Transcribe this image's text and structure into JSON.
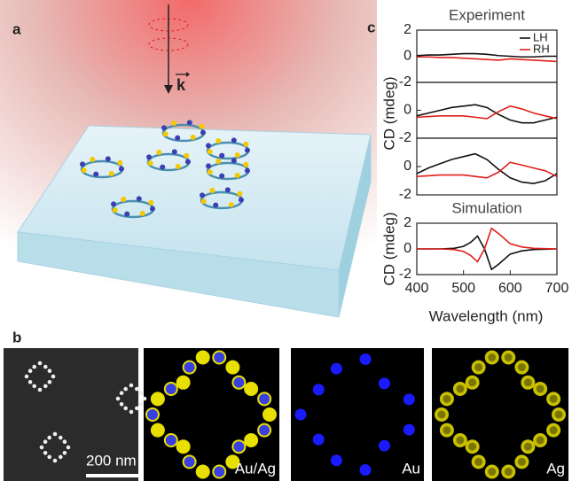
{
  "panel_a": {
    "label": "a",
    "vector": "k"
  },
  "panel_b": {
    "label": "b",
    "scale_bar": "200 nm",
    "images": [
      "Au/Ag",
      "Au",
      "Ag"
    ]
  },
  "panel_c": {
    "label": "c"
  },
  "chart_data": [
    {
      "type": "line",
      "title": "Experiment",
      "ylim": [
        -2,
        2
      ],
      "yticks": [
        2,
        0,
        -2
      ],
      "xlim": [
        400,
        700
      ],
      "x": [
        400,
        425,
        450,
        475,
        500,
        525,
        550,
        575,
        600,
        625,
        650,
        675,
        700
      ],
      "series": [
        {
          "name": "LH",
          "color": "#111111",
          "values": [
            0.05,
            0.1,
            0.1,
            0.15,
            0.2,
            0.2,
            0.15,
            0.05,
            0,
            -0.05,
            -0.05,
            0,
            0
          ]
        },
        {
          "name": "RH",
          "color": "#e0201b",
          "values": [
            -0.05,
            -0.05,
            -0.1,
            -0.1,
            -0.15,
            -0.2,
            -0.25,
            -0.3,
            -0.2,
            -0.25,
            -0.3,
            -0.35,
            -0.4
          ]
        }
      ],
      "legend": "upper right"
    },
    {
      "type": "line",
      "ylim": [
        -2,
        2
      ],
      "yticks": [
        0,
        -2
      ],
      "xlim": [
        400,
        700
      ],
      "x": [
        400,
        425,
        450,
        475,
        500,
        525,
        550,
        575,
        600,
        625,
        650,
        675,
        700
      ],
      "series": [
        {
          "color": "#111111",
          "values": [
            -0.4,
            -0.2,
            0,
            0.2,
            0.3,
            0.4,
            0.2,
            -0.3,
            -0.7,
            -0.9,
            -0.9,
            -0.7,
            -0.5
          ]
        },
        {
          "color": "#e0201b",
          "values": [
            -0.5,
            -0.45,
            -0.4,
            -0.4,
            -0.4,
            -0.5,
            -0.6,
            -0.1,
            0.3,
            0.1,
            -0.2,
            -0.4,
            -0.6
          ]
        }
      ]
    },
    {
      "type": "line",
      "ylim": [
        -2,
        2
      ],
      "yticks": [
        0,
        -2
      ],
      "xlim": [
        400,
        700
      ],
      "x": [
        400,
        425,
        450,
        475,
        500,
        525,
        550,
        575,
        600,
        625,
        650,
        675,
        700
      ],
      "series": [
        {
          "color": "#111111",
          "values": [
            -0.5,
            -0.1,
            0.2,
            0.5,
            0.7,
            0.9,
            0.5,
            -0.2,
            -0.8,
            -1.1,
            -1.2,
            -1.0,
            -0.5
          ]
        },
        {
          "color": "#e0201b",
          "values": [
            -0.7,
            -0.65,
            -0.6,
            -0.6,
            -0.6,
            -0.7,
            -0.8,
            -0.4,
            0.3,
            0.1,
            -0.1,
            -0.3,
            -0.7
          ]
        }
      ]
    },
    {
      "type": "line",
      "title": "Simulation",
      "ylabel": "CD (mdeg)",
      "xlabel": "Wavelength (nm)",
      "ylim": [
        -2,
        2
      ],
      "yticks": [
        2,
        0,
        -2
      ],
      "xlim": [
        400,
        700
      ],
      "xticks": [
        400,
        500,
        600,
        700
      ],
      "x": [
        400,
        450,
        480,
        500,
        515,
        530,
        545,
        560,
        575,
        600,
        625,
        650,
        700
      ],
      "series": [
        {
          "color": "#111111",
          "values": [
            0,
            0,
            0.05,
            0.2,
            0.5,
            1.0,
            0,
            -1.6,
            -1.2,
            -0.4,
            -0.15,
            -0.05,
            0
          ]
        },
        {
          "color": "#e0201b",
          "values": [
            0,
            0,
            -0.05,
            -0.2,
            -0.5,
            -1.0,
            0,
            1.6,
            1.2,
            0.4,
            0.15,
            0.05,
            0
          ]
        }
      ]
    }
  ],
  "ylabel": "CD (mdeg)"
}
